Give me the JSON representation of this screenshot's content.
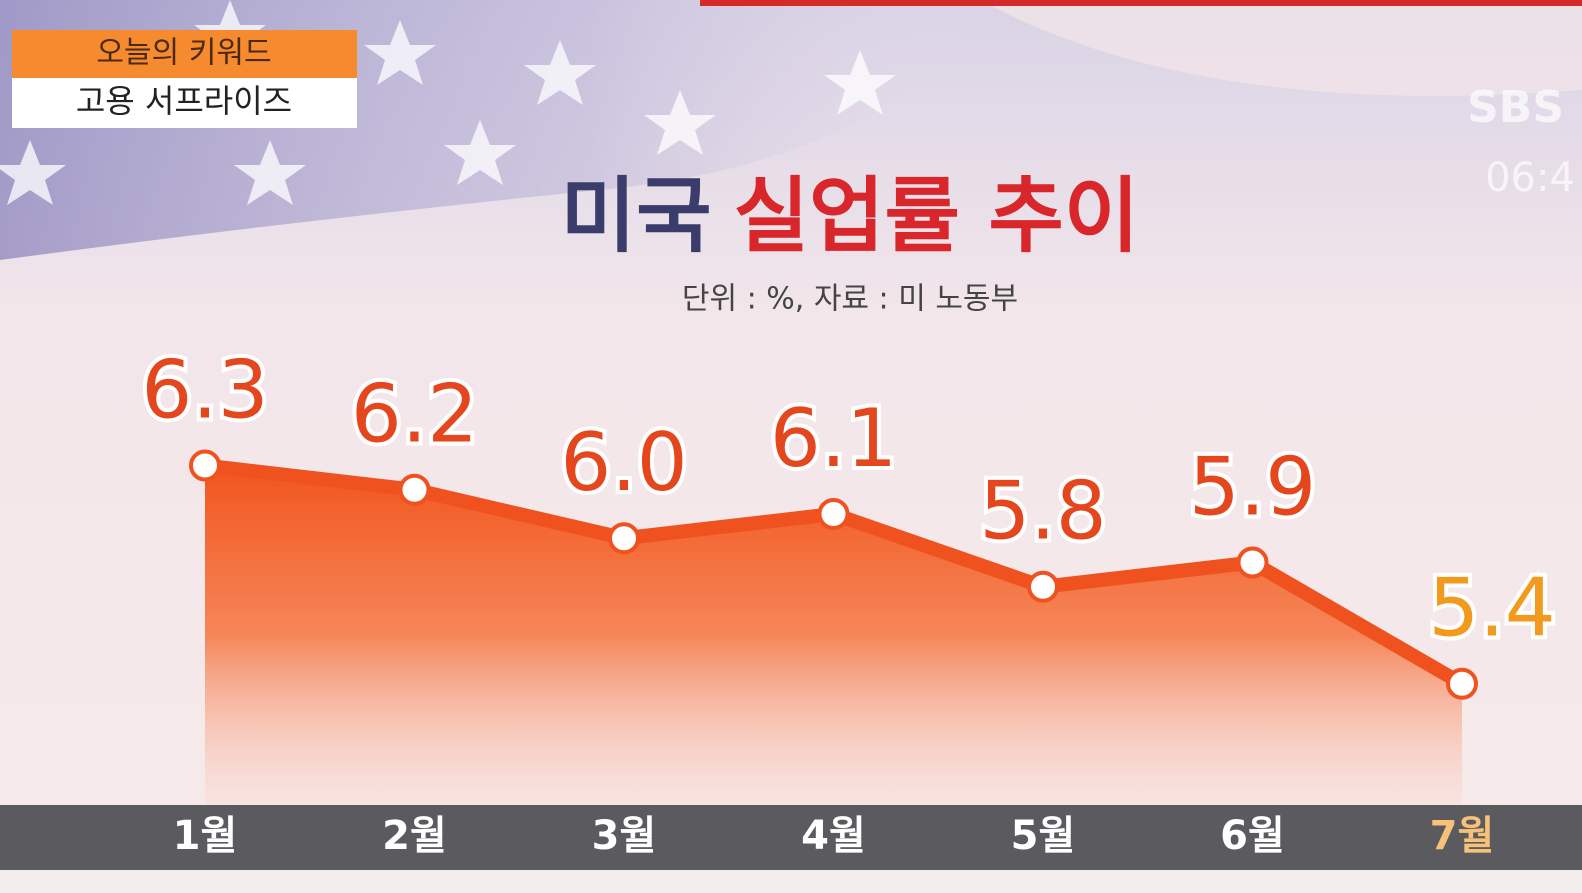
{
  "keyword_box": {
    "label": "오늘의 키워드",
    "keyword": "고용 서프라이즈"
  },
  "channel_logo": "SBS B",
  "clock": "06:4",
  "chart_data": {
    "type": "area",
    "title": [
      {
        "text": "미국",
        "color": "#3a3d6b"
      },
      {
        "text": "실업률 추이",
        "color": "#d8262b"
      }
    ],
    "subtitle": "단위 : %, 자료 : 미 노동부",
    "categories": [
      "1월",
      "2월",
      "3월",
      "4월",
      "5월",
      "6월",
      "7월"
    ],
    "values": [
      6.3,
      6.2,
      6.0,
      6.1,
      5.8,
      5.9,
      5.4
    ],
    "value_labels": [
      "6.3",
      "6.2",
      "6.0",
      "6.1",
      "5.8",
      "5.9",
      "5.4"
    ],
    "color": "#f0521f",
    "label_color": "#e4461d",
    "highlight_color": "#f29a1d",
    "ylim": [
      4.9,
      6.5
    ]
  }
}
